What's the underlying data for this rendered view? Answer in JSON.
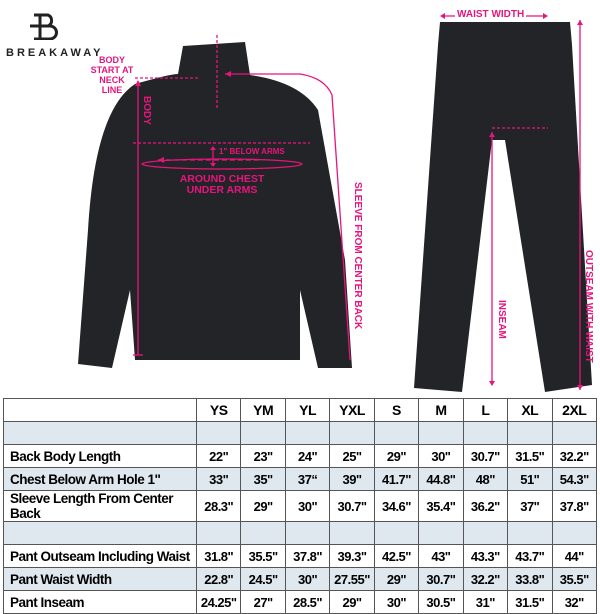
{
  "brand": {
    "logo_text": "BREAKAWAY"
  },
  "annotations": {
    "body_start": "BODY START AT NECK LINE",
    "body": "BODY",
    "below_arms": "1\" BELOW ARMS",
    "around_chest": "AROUND CHEST UNDER ARMS",
    "sleeve": "SLEEVE FROM CENTER BACK",
    "waist_width": "WAIST WIDTH",
    "inseam": "INSEAM",
    "outseam": "OUTSEAM WITH WAIST"
  },
  "colors": {
    "accent": "#e6157d",
    "garment": "#232427",
    "row_shade": "#dfe8ef"
  },
  "table": {
    "sizes": [
      "YS",
      "YM",
      "YL",
      "YXL",
      "S",
      "M",
      "L",
      "XL",
      "2XL"
    ],
    "rows": [
      {
        "label": "",
        "values": [
          "",
          "",
          "",
          "",
          "",
          "",
          "",
          "",
          ""
        ],
        "shaded": true
      },
      {
        "label": "Back Body Length",
        "values": [
          "22\"",
          "23\"",
          "24\"",
          "25\"",
          "29\"",
          "30\"",
          "30.7\"",
          "31.5\"",
          "32.2\""
        ],
        "shaded": false
      },
      {
        "label": "Chest Below Arm Hole 1\"",
        "values": [
          "33\"",
          "35\"",
          "37“",
          "39\"",
          "41.7\"",
          "44.8\"",
          "48\"",
          "51\"",
          "54.3\""
        ],
        "shaded": true
      },
      {
        "label": "Sleeve Length From Center Back",
        "values": [
          "28.3\"",
          "29\"",
          "30\"",
          "30.7\"",
          "34.6\"",
          "35.4\"",
          "36.2\"",
          "37\"",
          "37.8\""
        ],
        "shaded": false
      },
      {
        "label": "",
        "values": [
          "",
          "",
          "",
          "",
          "",
          "",
          "",
          "",
          ""
        ],
        "shaded": true
      },
      {
        "label": "Pant Outseam Including Waist",
        "values": [
          "31.8\"",
          "35.5\"",
          "37.8\"",
          "39.3\"",
          "42.5\"",
          "43\"",
          "43.3\"",
          "43.7\"",
          "44\""
        ],
        "shaded": false
      },
      {
        "label": "Pant Waist Width",
        "values": [
          "22.8\"",
          "24.5\"",
          "30\"",
          "27.55\"",
          "29\"",
          "30.7\"",
          "32.2\"",
          "33.8\"",
          "35.5\""
        ],
        "shaded": true
      },
      {
        "label": "Pant Inseam",
        "values": [
          "24.25\"",
          "27\"",
          "28.5\"",
          "29\"",
          "30\"",
          "30.5\"",
          "31\"",
          "31.5\"",
          "32\""
        ],
        "shaded": false
      }
    ]
  }
}
